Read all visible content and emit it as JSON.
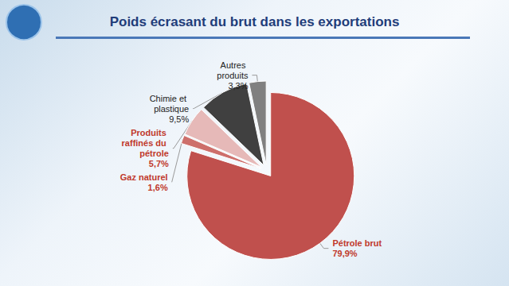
{
  "chart_data": {
    "type": "pie",
    "title": "Poids écrasant du brut dans les exportations",
    "categories": [
      "Pétrole brut",
      "Gaz naturel",
      "Produits raffinés du pétrole",
      "Chimie et plastique",
      "Autres produits"
    ],
    "values": [
      79.9,
      1.6,
      5.7,
      9.5,
      3.3
    ],
    "value_labels": [
      "79,9%",
      "1,6%",
      "5,7%",
      "9,5%",
      "3,3%"
    ],
    "colors": [
      "#c0504d",
      "#cd6f6b",
      "#e6b9b8",
      "#404040",
      "#808080"
    ],
    "data_labels": true
  }
}
